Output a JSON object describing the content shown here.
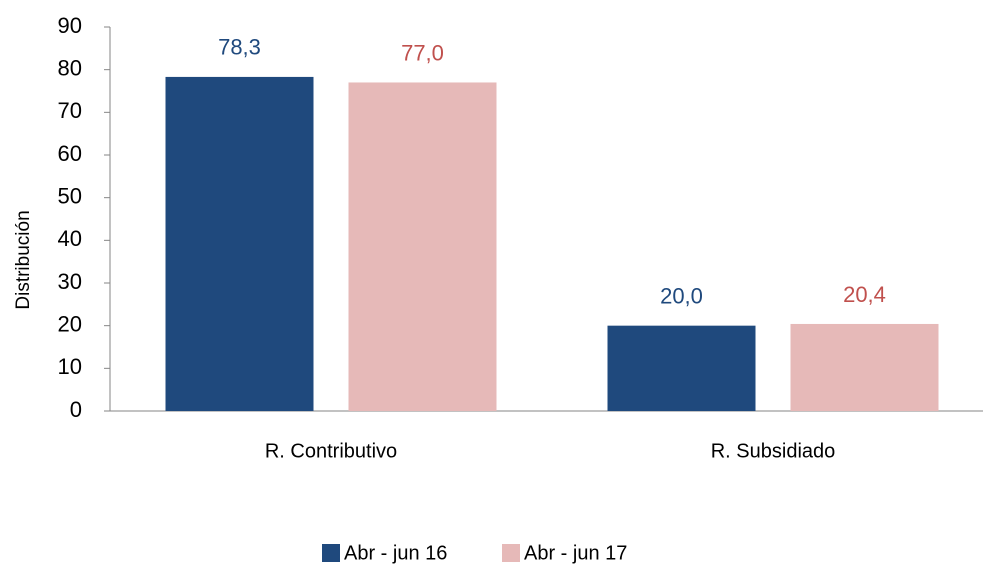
{
  "chart_data": {
    "type": "bar",
    "y_label": "Distribución",
    "categories": [
      "R. Contributivo",
      "R. Subsidiado"
    ],
    "series": [
      {
        "name": "Abr - jun 16",
        "color": "#1f497d",
        "label_color": "#1f497d",
        "values": [
          78.3,
          20.0
        ],
        "value_labels": [
          "78,3",
          "20,0"
        ]
      },
      {
        "name": "Abr - jun 17",
        "color": "#e6b9b8",
        "label_color": "#c0504d",
        "values": [
          77.0,
          20.4
        ],
        "value_labels": [
          "77,0",
          "20,4"
        ]
      }
    ],
    "ylim": [
      0,
      90
    ],
    "yticks": [
      0,
      10,
      20,
      30,
      40,
      50,
      60,
      70,
      80,
      90
    ],
    "grid": false,
    "legend": "bottom"
  }
}
